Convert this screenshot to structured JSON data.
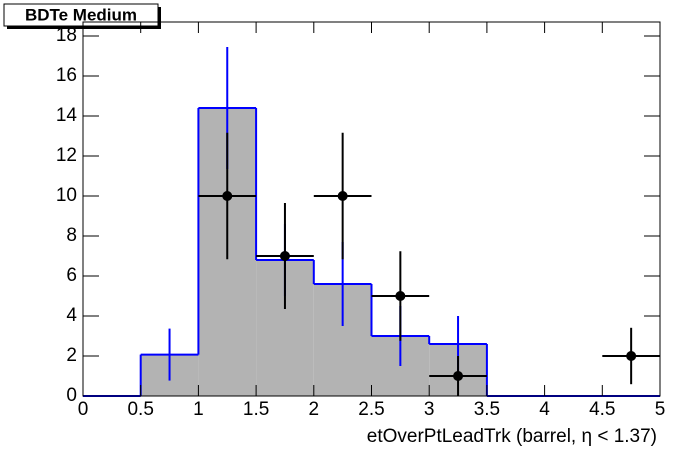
{
  "chart_data": {
    "type": "histogram",
    "title": "BDTe Medium",
    "x_label": "etOverPtLeadTrk (barrel,   η < 1.37)",
    "bins": [
      0,
      0.5,
      1,
      1.5,
      2,
      2.5,
      3,
      3.5,
      4,
      4.5,
      5
    ],
    "series": [
      {
        "color": "#0000ff",
        "fill": "#b3b3b3",
        "values": [
          0,
          2.07,
          14.4,
          6.8,
          5.6,
          3.0,
          2.6,
          0,
          0,
          0
        ],
        "errors": [
          0,
          1.3,
          3.05,
          1.8,
          2.1,
          1.5,
          1.4,
          0,
          0,
          0
        ]
      },
      {
        "color": "#000000",
        "values": [
          null,
          null,
          10,
          7,
          10,
          5,
          1,
          null,
          null,
          2
        ],
        "errors": [
          null,
          null,
          3.16,
          2.65,
          3.16,
          2.24,
          1,
          null,
          null,
          1.41
        ]
      }
    ],
    "xlim": [
      0,
      5
    ],
    "ylim": [
      0,
      18.7
    ],
    "xticks": [
      0,
      0.5,
      1,
      1.5,
      2,
      2.5,
      3,
      3.5,
      4,
      4.5,
      5
    ],
    "yticks": [
      0,
      2,
      4,
      6,
      8,
      10,
      12,
      14,
      16,
      18
    ]
  }
}
